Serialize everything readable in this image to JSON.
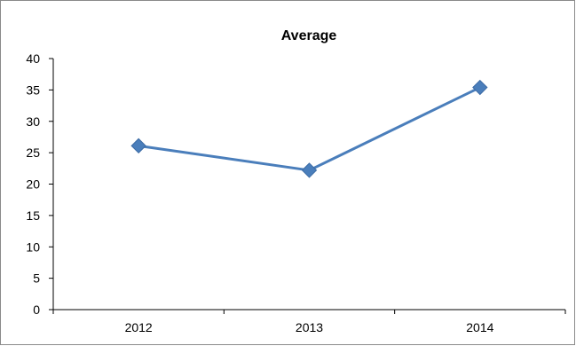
{
  "chart_data": {
    "type": "line",
    "title": "Average",
    "xlabel": "",
    "ylabel": "",
    "categories": [
      "2012",
      "2013",
      "2014"
    ],
    "series": [
      {
        "values": [
          26.1,
          22.2,
          35.4
        ],
        "color": "#4a7ebb",
        "marker": "diamond"
      }
    ],
    "ylim": [
      0,
      40
    ],
    "yticks": [
      0,
      5,
      10,
      15,
      20,
      25,
      30,
      35,
      40
    ],
    "grid": false,
    "legend": "none"
  }
}
